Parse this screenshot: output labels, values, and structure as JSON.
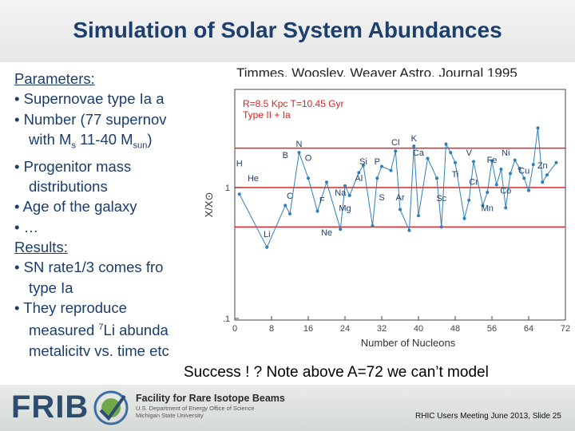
{
  "slide": {
    "title": "Simulation of Solar System Abundances",
    "citation": "Timmes, Woosley, Weaver Astro. Journal 1995",
    "success_note": "Success ! ? Note above A=72 we can’t model",
    "footer_org_name": "Facility for Rare Isotope Beams",
    "footer_org_sub1": "U.S. Department of Energy Office of Science",
    "footer_org_sub2": "Michigan State University",
    "footer_logo": "FRIB",
    "footer_slide_info": "RHIC Users Meeting June 2013, Slide 25"
  },
  "bullets": {
    "params_heading": "Parameters:",
    "p1": "• Supernovae type Ia a",
    "p2": "• Number (77 supernov",
    "p2b_pre": "with M",
    "p2b_sub": "s",
    "p2b_mid": " 11-40 M",
    "p2b_sub2": "sun",
    "p2b_post": ")",
    "p3": "• Progenitor mass",
    "p3b": "distributions",
    "p4": "• Age of the galaxy",
    "p5": "• …",
    "results_heading": "Results:",
    "r1": "• SN rate1/3 comes fro",
    "r1b": "type Ia",
    "r2": "• They reproduce",
    "r2b_pre": "measured ",
    "r2b_sup": "7",
    "r2b_post": "Li abunda",
    "r2c": "metalicity vs. time etc"
  },
  "chart_data": {
    "type": "scatter",
    "xlabel": "Number of Nucleons",
    "ylabel": "X/X⊙",
    "xlim": [
      0,
      72
    ],
    "x_ticks": [
      "0",
      "8",
      "16",
      "24",
      "32",
      "40",
      "48",
      "56",
      "64",
      "72"
    ],
    "y_scale": "log",
    "y_ticks": [
      "1",
      ".1"
    ],
    "reference_lines": [
      2,
      1,
      0.5
    ],
    "annotation_line1": "R=8.5 Kpc  T=10.45 Gyr",
    "annotation_line2": "Type II + Ia",
    "series_color": "#2e7fb8",
    "line_color": "#d62728",
    "points": [
      {
        "x": 1,
        "y": 0.89
      },
      {
        "x": 7,
        "y": 0.35
      },
      {
        "x": 11,
        "y": 0.73
      },
      {
        "x": 12,
        "y": 0.63
      },
      {
        "x": 14,
        "y": 1.85
      },
      {
        "x": 16,
        "y": 1.18
      },
      {
        "x": 18,
        "y": 0.66
      },
      {
        "x": 20,
        "y": 1.1
      },
      {
        "x": 23,
        "y": 0.48
      },
      {
        "x": 24,
        "y": 1.03
      },
      {
        "x": 25,
        "y": 0.87
      },
      {
        "x": 27,
        "y": 1.3
      },
      {
        "x": 28,
        "y": 1.48
      },
      {
        "x": 30,
        "y": 0.51
      },
      {
        "x": 31,
        "y": 1.18
      },
      {
        "x": 32,
        "y": 1.45
      },
      {
        "x": 34,
        "y": 1.35
      },
      {
        "x": 35,
        "y": 1.9
      },
      {
        "x": 36,
        "y": 0.68
      },
      {
        "x": 38,
        "y": 0.47
      },
      {
        "x": 39,
        "y": 2.07
      },
      {
        "x": 40,
        "y": 0.61
      },
      {
        "x": 42,
        "y": 1.67
      },
      {
        "x": 44,
        "y": 1.18
      },
      {
        "x": 45,
        "y": 0.5
      },
      {
        "x": 46,
        "y": 2.15
      },
      {
        "x": 47,
        "y": 1.85
      },
      {
        "x": 48,
        "y": 1.55
      },
      {
        "x": 50,
        "y": 0.58
      },
      {
        "x": 51,
        "y": 0.8
      },
      {
        "x": 52,
        "y": 1.58
      },
      {
        "x": 54,
        "y": 0.73
      },
      {
        "x": 55,
        "y": 0.92
      },
      {
        "x": 56,
        "y": 1.6
      },
      {
        "x": 57,
        "y": 1.05
      },
      {
        "x": 58,
        "y": 1.38
      },
      {
        "x": 59,
        "y": 0.7
      },
      {
        "x": 60,
        "y": 1.28
      },
      {
        "x": 61,
        "y": 1.62
      },
      {
        "x": 62,
        "y": 1.4
      },
      {
        "x": 63,
        "y": 1.18
      },
      {
        "x": 64,
        "y": 0.95
      },
      {
        "x": 65,
        "y": 1.5
      },
      {
        "x": 66,
        "y": 2.85
      },
      {
        "x": 67,
        "y": 1.1
      },
      {
        "x": 68,
        "y": 1.25
      },
      {
        "x": 70,
        "y": 1.55
      }
    ],
    "element_labels": [
      {
        "t": "H",
        "x": 1,
        "y": 1.45
      },
      {
        "t": "He",
        "x": 4,
        "y": 1.12
      },
      {
        "t": "Li",
        "x": 7,
        "y": 0.42
      },
      {
        "t": "C",
        "x": 12,
        "y": 0.82
      },
      {
        "t": "B",
        "x": 11,
        "y": 1.68
      },
      {
        "t": "N",
        "x": 14,
        "y": 2.05
      },
      {
        "t": "O",
        "x": 16,
        "y": 1.6
      },
      {
        "t": "F",
        "x": 19,
        "y": 0.76
      },
      {
        "t": "Ne",
        "x": 20,
        "y": 0.43
      },
      {
        "t": "Na",
        "x": 23,
        "y": 0.87
      },
      {
        "t": "Mg",
        "x": 24,
        "y": 0.66
      },
      {
        "t": "Al",
        "x": 27,
        "y": 1.12
      },
      {
        "t": "Si",
        "x": 28,
        "y": 1.5
      },
      {
        "t": "P",
        "x": 31,
        "y": 1.5
      },
      {
        "t": "S",
        "x": 32,
        "y": 0.8
      },
      {
        "t": "Ar",
        "x": 36,
        "y": 0.8
      },
      {
        "t": "Cl",
        "x": 35,
        "y": 2.1
      },
      {
        "t": "K",
        "x": 39,
        "y": 2.25
      },
      {
        "t": "Sc",
        "x": 45,
        "y": 0.79
      },
      {
        "t": "Ca",
        "x": 40,
        "y": 1.75
      },
      {
        "t": "Ti",
        "x": 48,
        "y": 1.2
      },
      {
        "t": "V",
        "x": 51,
        "y": 1.75
      },
      {
        "t": "Cr",
        "x": 52,
        "y": 1.05
      },
      {
        "t": "Mn",
        "x": 55,
        "y": 0.66
      },
      {
        "t": "Fe",
        "x": 56,
        "y": 1.55
      },
      {
        "t": "Ni",
        "x": 59,
        "y": 1.75
      },
      {
        "t": "Co",
        "x": 59,
        "y": 0.9
      },
      {
        "t": "Cu",
        "x": 63,
        "y": 1.28
      },
      {
        "t": "Zn",
        "x": 67,
        "y": 1.4
      }
    ]
  }
}
